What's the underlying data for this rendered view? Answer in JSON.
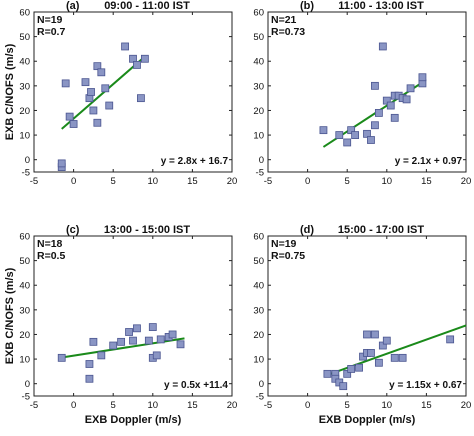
{
  "chart_data": [
    {
      "type": "scatter",
      "panel_label": "(a)",
      "title": "09:00 - 11:00 IST",
      "xlabel": "",
      "ylabel": "EXB C/NOFS (m/s)",
      "xlim": [
        -5,
        20
      ],
      "ylim": [
        -5,
        60
      ],
      "xticks": [
        "-5",
        "0",
        "5",
        "10",
        "15",
        "20"
      ],
      "yticks": [
        "-5",
        "0",
        "10",
        "20",
        "30",
        "40",
        "50",
        "60"
      ],
      "annotations": [
        "N=19",
        "R=0.7"
      ],
      "fit": {
        "slope": 2.8,
        "intercept": 16.7,
        "x_range": [
          -1.5,
          9
        ],
        "equation": "y = 2.8x + 16.7"
      },
      "x": [
        -1.5,
        -1.5,
        -1.0,
        -0.5,
        0.0,
        1.5,
        2.0,
        2.2,
        2.5,
        3.0,
        3.0,
        3.5,
        4.0,
        4.5,
        6.5,
        7.5,
        8.0,
        8.5,
        9.0
      ],
      "y": [
        -3.0,
        -1.5,
        31.0,
        17.5,
        14.5,
        31.5,
        25.0,
        27.5,
        20.0,
        38.0,
        15.0,
        35.5,
        29.0,
        22.0,
        46.0,
        41.0,
        38.5,
        25.0,
        41.0
      ],
      "marker_color": "#8a95c4",
      "line_color": "#1a8a1a"
    },
    {
      "type": "scatter",
      "panel_label": "(b)",
      "title": "11:00 - 13:00 IST",
      "xlabel": "",
      "ylabel": "",
      "xlim": [
        -5,
        20
      ],
      "ylim": [
        -5,
        60
      ],
      "xticks": [
        "-5",
        "0",
        "5",
        "10",
        "15",
        "20"
      ],
      "yticks": [
        "-5",
        "0",
        "10",
        "20",
        "30",
        "40",
        "50",
        "60"
      ],
      "annotations": [
        "N=21",
        "R=0.73"
      ],
      "fit": {
        "slope": 2.1,
        "intercept": 0.97,
        "x_range": [
          2,
          14.5
        ],
        "equation": "y = 2.1x + 0.97"
      },
      "x": [
        2.0,
        4.0,
        5.0,
        5.5,
        6.0,
        7.5,
        8.0,
        8.5,
        8.5,
        9.0,
        9.5,
        10.0,
        10.5,
        11.0,
        11.0,
        11.5,
        12.0,
        12.5,
        13.0,
        14.5,
        14.5
      ],
      "y": [
        12.0,
        10.0,
        7.0,
        12.0,
        10.0,
        10.5,
        8.0,
        30.0,
        14.0,
        19.0,
        46.0,
        24.0,
        22.0,
        26.0,
        17.0,
        26.0,
        25.0,
        24.5,
        29.0,
        31.0,
        33.5
      ],
      "marker_color": "#8a95c4",
      "line_color": "#1a8a1a"
    },
    {
      "type": "scatter",
      "panel_label": "(c)",
      "title": "13:00 - 15:00 IST",
      "xlabel": "EXB Doppler (m/s)",
      "ylabel": "EXB C/NOFS (m/s)",
      "xlim": [
        -5,
        20
      ],
      "ylim": [
        -5,
        60
      ],
      "xticks": [
        "-5",
        "0",
        "5",
        "10",
        "15",
        "20"
      ],
      "yticks": [
        "-5",
        "0",
        "10",
        "20",
        "30",
        "40",
        "50",
        "60"
      ],
      "annotations": [
        "N=18",
        "R=0.5"
      ],
      "fit": {
        "slope": 0.5,
        "intercept": 11.4,
        "x_range": [
          -1.5,
          14
        ],
        "equation": "y = 0.5x +11.4"
      },
      "x": [
        -1.5,
        2.0,
        2.0,
        2.5,
        3.5,
        5.0,
        6.0,
        7.0,
        7.5,
        8.0,
        9.5,
        10.0,
        10.0,
        10.5,
        11.0,
        12.0,
        12.5,
        13.5
      ],
      "y": [
        10.5,
        8.0,
        2.0,
        17.0,
        11.5,
        15.5,
        17.0,
        21.0,
        17.5,
        22.5,
        17.5,
        23.0,
        10.5,
        11.5,
        18.0,
        19.0,
        20.0,
        16.0
      ],
      "marker_color": "#8a95c4",
      "line_color": "#1a8a1a"
    },
    {
      "type": "scatter",
      "panel_label": "(d)",
      "title": "15:00 - 17:00 IST",
      "xlabel": "EXB Doppler (m/s)",
      "ylabel": "",
      "xlim": [
        -5,
        20
      ],
      "ylim": [
        -5,
        60
      ],
      "xticks": [
        "-5",
        "0",
        "5",
        "10",
        "15",
        "20"
      ],
      "yticks": [
        "-5",
        "0",
        "10",
        "20",
        "30",
        "40",
        "50",
        "60"
      ],
      "annotations": [
        "N=19",
        "R=0.75"
      ],
      "fit": {
        "slope": 1.15,
        "intercept": 0.67,
        "x_range": [
          2.5,
          20
        ],
        "equation": "y = 1.15x + 0.67"
      },
      "x": [
        2.5,
        3.5,
        3.5,
        4.0,
        4.5,
        5.0,
        5.5,
        6.5,
        7.0,
        7.5,
        7.5,
        8.0,
        8.5,
        9.0,
        9.5,
        10.0,
        11.0,
        12.0,
        18.0
      ],
      "y": [
        4.0,
        4.0,
        2.0,
        0.5,
        -1.0,
        4.0,
        6.0,
        6.5,
        11.0,
        20.0,
        12.5,
        12.5,
        20.0,
        8.5,
        15.5,
        17.5,
        10.5,
        10.5,
        18.0
      ],
      "marker_color": "#8a95c4",
      "line_color": "#1a8a1a"
    }
  ]
}
